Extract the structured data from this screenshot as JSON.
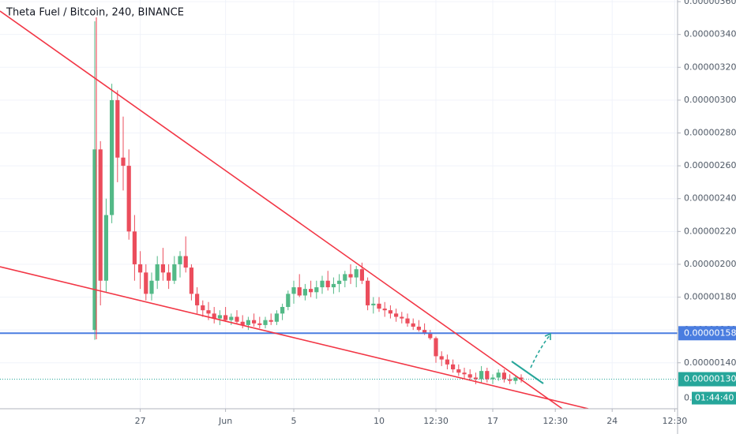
{
  "chart_data": {
    "type": "candlestick",
    "title": "Theta Fuel / Bitcoin, 240, BINANCE",
    "categories": [
      null,
      null,
      null,
      null,
      null,
      null,
      null,
      null,
      "27",
      null,
      null,
      null,
      null,
      null,
      null,
      null,
      null,
      null,
      null,
      null,
      null,
      null,
      null,
      "Jun",
      null,
      null,
      null,
      null,
      null,
      null,
      null,
      null,
      null,
      null,
      null,
      "5",
      null,
      null,
      null,
      null,
      null,
      null,
      null,
      null,
      null,
      null,
      null,
      null,
      null,
      null,
      "10",
      null,
      null,
      null,
      null,
      null,
      null,
      null,
      null,
      null,
      "12:30",
      null,
      null,
      null,
      null,
      null,
      null,
      null,
      null,
      null,
      "17",
      null,
      null,
      null,
      null,
      null,
      null,
      null,
      null,
      null,
      null,
      "12:30",
      null,
      null,
      null,
      null,
      null,
      null,
      null,
      null,
      null,
      "24",
      null,
      null,
      null,
      null,
      null,
      null,
      null,
      null,
      null,
      null,
      "12:30"
    ],
    "open": [
      1.6e-06,
      2.7e-06,
      1.9e-06,
      2.3e-06,
      3e-06,
      2.65e-06,
      2.6e-06,
      2.2e-06,
      2e-06,
      1.95e-06,
      1.82e-06,
      1.9e-06,
      2e-06,
      1.95e-06,
      1.9e-06,
      2e-06,
      2.05e-06,
      1.98e-06,
      1.82e-06,
      1.75e-06,
      1.72e-06,
      1.7e-06,
      1.67e-06,
      1.69e-06,
      1.66e-06,
      1.68e-06,
      1.65e-06,
      1.63e-06,
      1.66e-06,
      1.64e-06,
      1.63e-06,
      1.66e-06,
      1.65e-06,
      1.7e-06,
      1.74e-06,
      1.82e-06,
      1.86e-06,
      1.81e-06,
      1.85e-06,
      1.83e-06,
      1.86e-06,
      1.9e-06,
      1.86e-06,
      1.88e-06,
      1.9e-06,
      1.94e-06,
      1.92e-06,
      1.97e-06,
      1.9e-06,
      1.75e-06,
      1.76e-06,
      1.73e-06,
      1.72e-06,
      1.7e-06,
      1.68e-06,
      1.67e-06,
      1.64e-06,
      1.62e-06,
      1.6e-06,
      1.58e-06,
      1.55e-06,
      1.44e-06,
      1.42e-06,
      1.39e-06,
      1.36e-06,
      1.34e-06,
      1.33e-06,
      1.31e-06,
      1.3e-06,
      1.35e-06,
      1.3e-06,
      1.31e-06,
      1.34e-06,
      1.3e-06,
      1.29e-06,
      1.31e-06,
      null,
      null,
      null,
      null,
      null,
      null,
      null,
      null,
      null,
      null,
      null,
      null,
      null,
      null,
      null,
      null,
      null,
      null,
      null,
      null,
      null,
      null,
      null,
      null,
      null,
      null,
      null
    ],
    "high": [
      3.48e-06,
      2.75e-06,
      2.4e-06,
      3.1e-06,
      3.06e-06,
      2.9e-06,
      2.7e-06,
      2.3e-06,
      2.08e-06,
      2e-06,
      1.95e-06,
      2.05e-06,
      2.1e-06,
      2e-06,
      2.05e-06,
      2.08e-06,
      2.17e-06,
      2e-06,
      1.86e-06,
      1.78e-06,
      1.77e-06,
      1.74e-06,
      1.72e-06,
      1.74e-06,
      1.7e-06,
      1.72e-06,
      1.69e-06,
      1.68e-06,
      1.7e-06,
      1.68e-06,
      1.68e-06,
      1.7e-06,
      1.72e-06,
      1.76e-06,
      1.84e-06,
      1.9e-06,
      1.94e-06,
      1.88e-06,
      1.9e-06,
      1.9e-06,
      1.93e-06,
      1.96e-06,
      1.92e-06,
      1.94e-06,
      1.96e-06,
      2e-06,
      1.99e-06,
      2.01e-06,
      1.92e-06,
      1.8e-06,
      1.8e-06,
      1.77e-06,
      1.75e-06,
      1.73e-06,
      1.71e-06,
      1.7e-06,
      1.67e-06,
      1.66e-06,
      1.64e-06,
      1.6e-06,
      1.56e-06,
      1.47e-06,
      1.45e-06,
      1.42e-06,
      1.39e-06,
      1.37e-06,
      1.36e-06,
      1.34e-06,
      1.38e-06,
      1.37e-06,
      1.33e-06,
      1.36e-06,
      1.36e-06,
      1.33e-06,
      1.32e-06,
      1.33e-06,
      null,
      null,
      null,
      null,
      null,
      null,
      null,
      null,
      null,
      null,
      null,
      null,
      null,
      null,
      null,
      null,
      null,
      null,
      null,
      null,
      null,
      null,
      null,
      null,
      null,
      null,
      null
    ],
    "low": [
      1.54e-06,
      1.75e-06,
      1.83e-06,
      2.25e-06,
      2.5e-06,
      2.45e-06,
      2.15e-06,
      1.9e-06,
      1.85e-06,
      1.78e-06,
      1.78e-06,
      1.85e-06,
      1.9e-06,
      1.85e-06,
      1.88e-06,
      1.92e-06,
      1.95e-06,
      1.78e-06,
      1.7e-06,
      1.68e-06,
      1.66e-06,
      1.64e-06,
      1.63e-06,
      1.65e-06,
      1.63e-06,
      1.64e-06,
      1.61e-06,
      1.6e-06,
      1.62e-06,
      1.61e-06,
      1.61e-06,
      1.63e-06,
      1.63e-06,
      1.66e-06,
      1.72e-06,
      1.76e-06,
      1.8e-06,
      1.78e-06,
      1.8e-06,
      1.79e-06,
      1.82e-06,
      1.84e-06,
      1.82e-06,
      1.83e-06,
      1.86e-06,
      1.88e-06,
      1.86e-06,
      1.88e-06,
      1.72e-06,
      1.7e-06,
      1.71e-06,
      1.68e-06,
      1.67e-06,
      1.65e-06,
      1.64e-06,
      1.62e-06,
      1.6e-06,
      1.59e-06,
      1.57e-06,
      1.54e-06,
      1.4e-06,
      1.38e-06,
      1.36e-06,
      1.34e-06,
      1.32e-06,
      1.3e-06,
      1.29e-06,
      1.27e-06,
      1.28e-06,
      1.28e-06,
      1.27e-06,
      1.29e-06,
      1.28e-06,
      1.27e-06,
      1.27e-06,
      1.28e-06,
      null,
      null,
      null,
      null,
      null,
      null,
      null,
      null,
      null,
      null,
      null,
      null,
      null,
      null,
      null,
      null,
      null,
      null,
      null,
      null,
      null,
      null,
      null,
      null,
      null,
      null,
      null
    ],
    "close": [
      2.7e-06,
      1.9e-06,
      2.3e-06,
      3e-06,
      2.65e-06,
      2.6e-06,
      2.2e-06,
      2e-06,
      1.95e-06,
      1.82e-06,
      1.9e-06,
      2e-06,
      1.95e-06,
      1.9e-06,
      2e-06,
      2.05e-06,
      1.98e-06,
      1.82e-06,
      1.75e-06,
      1.72e-06,
      1.7e-06,
      1.67e-06,
      1.69e-06,
      1.66e-06,
      1.68e-06,
      1.65e-06,
      1.63e-06,
      1.66e-06,
      1.64e-06,
      1.63e-06,
      1.66e-06,
      1.65e-06,
      1.7e-06,
      1.74e-06,
      1.82e-06,
      1.86e-06,
      1.81e-06,
      1.85e-06,
      1.83e-06,
      1.86e-06,
      1.9e-06,
      1.86e-06,
      1.88e-06,
      1.9e-06,
      1.94e-06,
      1.92e-06,
      1.97e-06,
      1.9e-06,
      1.75e-06,
      1.76e-06,
      1.73e-06,
      1.72e-06,
      1.7e-06,
      1.68e-06,
      1.67e-06,
      1.64e-06,
      1.62e-06,
      1.6e-06,
      1.58e-06,
      1.55e-06,
      1.44e-06,
      1.42e-06,
      1.39e-06,
      1.36e-06,
      1.34e-06,
      1.33e-06,
      1.31e-06,
      1.3e-06,
      1.35e-06,
      1.3e-06,
      1.31e-06,
      1.34e-06,
      1.3e-06,
      1.29e-06,
      1.31e-06,
      1.3e-06,
      null,
      null,
      null,
      null,
      null,
      null,
      null,
      null,
      null,
      null,
      null,
      null,
      null,
      null,
      null,
      null,
      null,
      null,
      null,
      null,
      null,
      null,
      null,
      null,
      null,
      null,
      null
    ],
    "up_color": "#53b987",
    "down_color": "#eb4d5c",
    "ylim": [
      1.12e-06,
      3.61e-06
    ],
    "yticks": [
      {
        "value": 1.4e-06,
        "label": "0.00000140"
      },
      {
        "value": 1.6e-06,
        "label": "0.00000160"
      },
      {
        "value": 1.8e-06,
        "label": "0.00000180"
      },
      {
        "value": 2e-06,
        "label": "0.00000200"
      },
      {
        "value": 2.2e-06,
        "label": "0.00000220"
      },
      {
        "value": 2.4e-06,
        "label": "0.00000240"
      },
      {
        "value": 2.6e-06,
        "label": "0.00000260"
      },
      {
        "value": 2.8e-06,
        "label": "0.00000280"
      },
      {
        "value": 3e-06,
        "label": "0.00000300"
      },
      {
        "value": 3.2e-06,
        "label": "0.00000320"
      },
      {
        "value": 3.4e-06,
        "label": "0.00000340"
      },
      {
        "value": 3.6e-06,
        "label": "0.00000360"
      }
    ],
    "grid": true,
    "price_lines": [
      {
        "value": 1.58e-06,
        "label": "0.00000158",
        "color": "#4a7de0",
        "style": "solid"
      },
      {
        "value": 1.3e-06,
        "label": "0.00000130",
        "color": "#26a69a",
        "style": "dotted"
      }
    ],
    "partial_label": "0.",
    "countdown": "01:44:40"
  }
}
